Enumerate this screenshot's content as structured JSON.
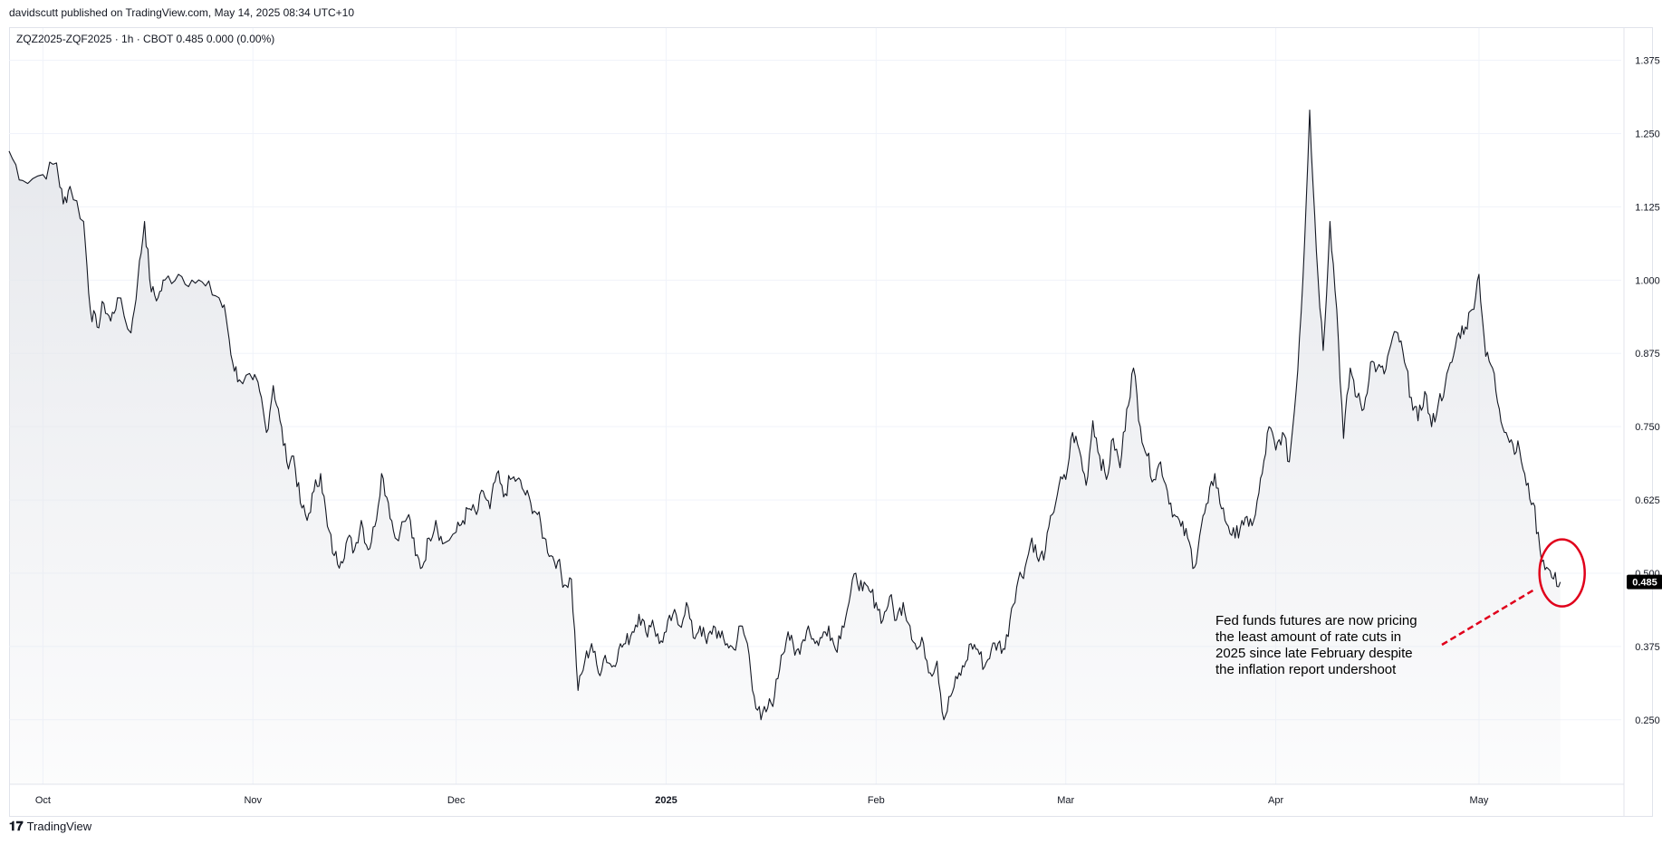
{
  "header": {
    "byline": "davidscutt published on TradingView.com, May 14, 2025 08:34 UTC+10",
    "legend": "ZQZ2025-ZQF2025 · 1h · CBOT  0.485  0.000 (0.00%)"
  },
  "footer": {
    "brand": "TradingView",
    "logo_icon": "tradingview-logo-icon"
  },
  "colors": {
    "line": "#131722",
    "area_top": "#e3e5ea",
    "grid": "#f0f3fa",
    "annotation": "#e0001b",
    "last_price_bg": "#000000"
  },
  "chart_data": {
    "type": "area",
    "symbol": "ZQZ2025-ZQF2025",
    "interval": "1h",
    "exchange": "CBOT",
    "last_value": "0.485",
    "ylim": [
      0.14,
      1.43
    ],
    "y_ticks": [
      0.25,
      0.375,
      0.5,
      0.625,
      0.75,
      0.875,
      1.0,
      1.125,
      1.25,
      1.375
    ],
    "y_tick_labels": [
      "0.250",
      "0.375",
      "0.500",
      "0.625",
      "0.750",
      "0.875",
      "1.000",
      "1.125",
      "1.250",
      "1.375"
    ],
    "x_ticks": [
      {
        "label": "Oct",
        "date": "2024-10-01",
        "bold": false
      },
      {
        "label": "Nov",
        "date": "2024-11-01",
        "bold": false
      },
      {
        "label": "Dec",
        "date": "2024-12-01",
        "bold": false
      },
      {
        "label": "2025",
        "date": "2025-01-01",
        "bold": true
      },
      {
        "label": "Feb",
        "date": "2025-02-01",
        "bold": false
      },
      {
        "label": "Mar",
        "date": "2025-03-01",
        "bold": false
      },
      {
        "label": "Apr",
        "date": "2025-04-01",
        "bold": false
      },
      {
        "label": "May",
        "date": "2025-05-01",
        "bold": false
      }
    ],
    "grid": true,
    "series": [
      {
        "values": [
          [
            "2024-09-26",
            1.22
          ],
          [
            "2024-09-28",
            1.17
          ],
          [
            "2024-10-01",
            1.18
          ],
          [
            "2024-10-03",
            1.2
          ],
          [
            "2024-10-04",
            1.13
          ],
          [
            "2024-10-05",
            1.16
          ],
          [
            "2024-10-07",
            1.1
          ],
          [
            "2024-10-08",
            0.95
          ],
          [
            "2024-10-09",
            0.92
          ],
          [
            "2024-10-10",
            0.96
          ],
          [
            "2024-10-11",
            0.93
          ],
          [
            "2024-10-12",
            0.97
          ],
          [
            "2024-10-14",
            0.91
          ],
          [
            "2024-10-15",
            1.0
          ],
          [
            "2024-10-16",
            1.1
          ],
          [
            "2024-10-17",
            0.98
          ],
          [
            "2024-10-18",
            0.97
          ],
          [
            "2024-10-19",
            1.0
          ],
          [
            "2024-10-21",
            1.01
          ],
          [
            "2024-10-23",
            1.0
          ],
          [
            "2024-10-25",
            0.99
          ],
          [
            "2024-10-27",
            0.97
          ],
          [
            "2024-10-28",
            0.94
          ],
          [
            "2024-10-29",
            0.86
          ],
          [
            "2024-10-30",
            0.83
          ],
          [
            "2024-11-01",
            0.83
          ],
          [
            "2024-11-02",
            0.81
          ],
          [
            "2024-11-03",
            0.74
          ],
          [
            "2024-11-04",
            0.82
          ],
          [
            "2024-11-05",
            0.76
          ],
          [
            "2024-11-06",
            0.69
          ],
          [
            "2024-11-07",
            0.7
          ],
          [
            "2024-11-08",
            0.62
          ],
          [
            "2024-11-09",
            0.59
          ],
          [
            "2024-11-10",
            0.64
          ],
          [
            "2024-11-11",
            0.67
          ],
          [
            "2024-11-12",
            0.58
          ],
          [
            "2024-11-13",
            0.53
          ],
          [
            "2024-11-14",
            0.52
          ],
          [
            "2024-11-15",
            0.56
          ],
          [
            "2024-11-16",
            0.54
          ],
          [
            "2024-11-17",
            0.59
          ],
          [
            "2024-11-18",
            0.54
          ],
          [
            "2024-11-19",
            0.58
          ],
          [
            "2024-11-20",
            0.67
          ],
          [
            "2024-11-21",
            0.62
          ],
          [
            "2024-11-22",
            0.56
          ],
          [
            "2024-11-24",
            0.6
          ],
          [
            "2024-11-25",
            0.53
          ],
          [
            "2024-11-26",
            0.51
          ],
          [
            "2024-11-27",
            0.56
          ],
          [
            "2024-11-28",
            0.59
          ],
          [
            "2024-11-29",
            0.55
          ],
          [
            "2024-12-01",
            0.57
          ],
          [
            "2024-12-02",
            0.59
          ],
          [
            "2024-12-03",
            0.61
          ],
          [
            "2024-12-04",
            0.6
          ],
          [
            "2024-12-05",
            0.64
          ],
          [
            "2024-12-06",
            0.61
          ],
          [
            "2024-12-07",
            0.67
          ],
          [
            "2024-12-08",
            0.63
          ],
          [
            "2024-12-09",
            0.66
          ],
          [
            "2024-12-10",
            0.66
          ],
          [
            "2024-12-11",
            0.64
          ],
          [
            "2024-12-12",
            0.62
          ],
          [
            "2024-12-13",
            0.6
          ],
          [
            "2024-12-14",
            0.56
          ],
          [
            "2024-12-15",
            0.53
          ],
          [
            "2024-12-16",
            0.52
          ],
          [
            "2024-12-17",
            0.48
          ],
          [
            "2024-12-18",
            0.49
          ],
          [
            "2024-12-19",
            0.3
          ],
          [
            "2024-12-20",
            0.35
          ],
          [
            "2024-12-21",
            0.38
          ],
          [
            "2024-12-22",
            0.33
          ],
          [
            "2024-12-23",
            0.36
          ],
          [
            "2024-12-24",
            0.34
          ],
          [
            "2024-12-25",
            0.37
          ],
          [
            "2024-12-26",
            0.38
          ],
          [
            "2024-12-27",
            0.4
          ],
          [
            "2024-12-28",
            0.43
          ],
          [
            "2024-12-29",
            0.4
          ],
          [
            "2024-12-30",
            0.42
          ],
          [
            "2024-12-31",
            0.38
          ],
          [
            "2025-01-01",
            0.4
          ],
          [
            "2025-01-02",
            0.43
          ],
          [
            "2025-01-03",
            0.41
          ],
          [
            "2025-01-04",
            0.45
          ],
          [
            "2025-01-05",
            0.39
          ],
          [
            "2025-01-06",
            0.41
          ],
          [
            "2025-01-07",
            0.38
          ],
          [
            "2025-01-08",
            0.41
          ],
          [
            "2025-01-09",
            0.39
          ],
          [
            "2025-01-10",
            0.38
          ],
          [
            "2025-01-11",
            0.37
          ],
          [
            "2025-01-12",
            0.41
          ],
          [
            "2025-01-13",
            0.38
          ],
          [
            "2025-01-14",
            0.29
          ],
          [
            "2025-01-15",
            0.25
          ],
          [
            "2025-01-16",
            0.27
          ],
          [
            "2025-01-17",
            0.29
          ],
          [
            "2025-01-18",
            0.36
          ],
          [
            "2025-01-19",
            0.4
          ],
          [
            "2025-01-20",
            0.36
          ],
          [
            "2025-01-21",
            0.38
          ],
          [
            "2025-01-22",
            0.41
          ],
          [
            "2025-01-23",
            0.38
          ],
          [
            "2025-01-24",
            0.39
          ],
          [
            "2025-01-25",
            0.41
          ],
          [
            "2025-01-26",
            0.37
          ],
          [
            "2025-01-27",
            0.41
          ],
          [
            "2025-01-28",
            0.45
          ],
          [
            "2025-01-29",
            0.5
          ],
          [
            "2025-01-30",
            0.47
          ],
          [
            "2025-01-31",
            0.47
          ],
          [
            "2025-02-01",
            0.45
          ],
          [
            "2025-02-02",
            0.42
          ],
          [
            "2025-02-03",
            0.46
          ],
          [
            "2025-02-04",
            0.42
          ],
          [
            "2025-02-05",
            0.45
          ],
          [
            "2025-02-06",
            0.41
          ],
          [
            "2025-02-07",
            0.37
          ],
          [
            "2025-02-08",
            0.38
          ],
          [
            "2025-02-09",
            0.33
          ],
          [
            "2025-02-10",
            0.35
          ],
          [
            "2025-02-11",
            0.25
          ],
          [
            "2025-02-12",
            0.29
          ],
          [
            "2025-02-13",
            0.32
          ],
          [
            "2025-02-14",
            0.34
          ],
          [
            "2025-02-15",
            0.38
          ],
          [
            "2025-02-16",
            0.37
          ],
          [
            "2025-02-17",
            0.34
          ],
          [
            "2025-02-18",
            0.37
          ],
          [
            "2025-02-19",
            0.38
          ],
          [
            "2025-02-20",
            0.37
          ],
          [
            "2025-02-21",
            0.44
          ],
          [
            "2025-02-22",
            0.49
          ],
          [
            "2025-02-23",
            0.51
          ],
          [
            "2025-02-24",
            0.56
          ],
          [
            "2025-02-25",
            0.52
          ],
          [
            "2025-02-26",
            0.54
          ],
          [
            "2025-02-27",
            0.6
          ],
          [
            "2025-02-28",
            0.65
          ],
          [
            "2025-03-01",
            0.66
          ],
          [
            "2025-03-02",
            0.74
          ],
          [
            "2025-03-03",
            0.71
          ],
          [
            "2025-03-04",
            0.65
          ],
          [
            "2025-03-05",
            0.76
          ],
          [
            "2025-03-06",
            0.7
          ],
          [
            "2025-03-07",
            0.66
          ],
          [
            "2025-03-08",
            0.73
          ],
          [
            "2025-03-09",
            0.68
          ],
          [
            "2025-03-10",
            0.78
          ],
          [
            "2025-03-11",
            0.85
          ],
          [
            "2025-03-12",
            0.75
          ],
          [
            "2025-03-13",
            0.7
          ],
          [
            "2025-03-14",
            0.66
          ],
          [
            "2025-03-15",
            0.69
          ],
          [
            "2025-03-16",
            0.64
          ],
          [
            "2025-03-17",
            0.6
          ],
          [
            "2025-03-18",
            0.58
          ],
          [
            "2025-03-19",
            0.56
          ],
          [
            "2025-03-20",
            0.51
          ],
          [
            "2025-03-21",
            0.58
          ],
          [
            "2025-03-22",
            0.62
          ],
          [
            "2025-03-23",
            0.67
          ],
          [
            "2025-03-24",
            0.61
          ],
          [
            "2025-03-25",
            0.58
          ],
          [
            "2025-03-26",
            0.56
          ],
          [
            "2025-03-27",
            0.59
          ],
          [
            "2025-03-28",
            0.58
          ],
          [
            "2025-03-29",
            0.6
          ],
          [
            "2025-03-30",
            0.67
          ],
          [
            "2025-03-31",
            0.75
          ],
          [
            "2025-04-01",
            0.71
          ],
          [
            "2025-04-02",
            0.74
          ],
          [
            "2025-04-03",
            0.69
          ],
          [
            "2025-04-04",
            0.81
          ],
          [
            "2025-04-05",
            1.0
          ],
          [
            "2025-04-06",
            1.29
          ],
          [
            "2025-04-07",
            1.05
          ],
          [
            "2025-04-08",
            0.88
          ],
          [
            "2025-04-09",
            1.1
          ],
          [
            "2025-04-10",
            0.95
          ],
          [
            "2025-04-11",
            0.73
          ],
          [
            "2025-04-12",
            0.85
          ],
          [
            "2025-04-13",
            0.8
          ],
          [
            "2025-04-14",
            0.78
          ],
          [
            "2025-04-15",
            0.86
          ],
          [
            "2025-04-16",
            0.85
          ],
          [
            "2025-04-17",
            0.84
          ],
          [
            "2025-04-18",
            0.89
          ],
          [
            "2025-04-19",
            0.91
          ],
          [
            "2025-04-20",
            0.86
          ],
          [
            "2025-04-21",
            0.8
          ],
          [
            "2025-04-22",
            0.76
          ],
          [
            "2025-04-23",
            0.81
          ],
          [
            "2025-04-24",
            0.75
          ],
          [
            "2025-04-25",
            0.79
          ],
          [
            "2025-04-26",
            0.82
          ],
          [
            "2025-04-27",
            0.86
          ],
          [
            "2025-04-28",
            0.91
          ],
          [
            "2025-04-29",
            0.92
          ],
          [
            "2025-04-30",
            0.95
          ],
          [
            "2025-05-01",
            1.01
          ],
          [
            "2025-05-02",
            0.87
          ],
          [
            "2025-05-03",
            0.85
          ],
          [
            "2025-05-04",
            0.78
          ],
          [
            "2025-05-05",
            0.74
          ],
          [
            "2025-05-06",
            0.72
          ],
          [
            "2025-05-07",
            0.71
          ],
          [
            "2025-05-08",
            0.65
          ],
          [
            "2025-05-09",
            0.62
          ],
          [
            "2025-05-10",
            0.54
          ],
          [
            "2025-05-11",
            0.51
          ],
          [
            "2025-05-12",
            0.49
          ],
          [
            "2025-05-13",
            0.485
          ]
        ]
      }
    ],
    "annotation": {
      "text_lines": [
        "Fed funds futures are now pricing",
        "the least amount of rate cuts in",
        "2025 since late February despite",
        "the inflation report undershoot"
      ],
      "shape": "red circle around latest price with dashed red arrow"
    }
  }
}
